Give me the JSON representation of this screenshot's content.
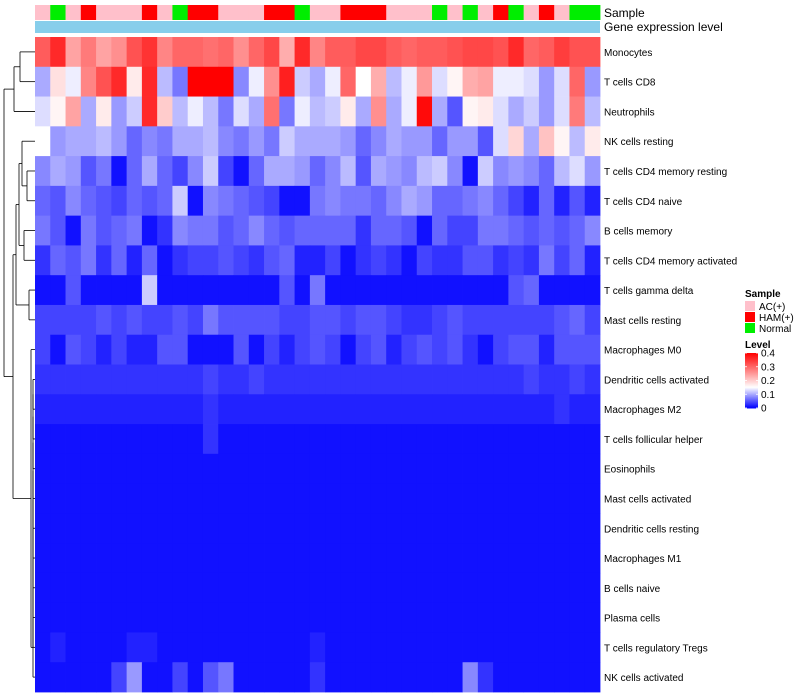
{
  "chart_data": {
    "type": "heatmap",
    "title": "",
    "annotation_tracks": {
      "sample": {
        "label": "Sample",
        "values": [
          "AC(+)",
          "Normal",
          "AC(+)",
          "HAM(+)",
          "AC(+)",
          "AC(+)",
          "AC(+)",
          "HAM(+)",
          "AC(+)",
          "Normal",
          "HAM(+)",
          "HAM(+)",
          "AC(+)",
          "AC(+)",
          "AC(+)",
          "HAM(+)",
          "HAM(+)",
          "Normal",
          "AC(+)",
          "AC(+)",
          "HAM(+)",
          "HAM(+)",
          "HAM(+)",
          "AC(+)",
          "AC(+)",
          "AC(+)",
          "Normal",
          "AC(+)",
          "Normal",
          "AC(+)",
          "HAM(+)",
          "Normal",
          "AC(+)",
          "HAM(+)",
          "AC(+)",
          "Normal",
          "Normal"
        ]
      },
      "gene_expression": {
        "label": "Gene expression level",
        "color": "#87ceeb"
      }
    },
    "legend": {
      "sample_title": "Sample",
      "sample_entries": [
        {
          "label": "AC(+)",
          "color": "#ffc0cb"
        },
        {
          "label": "HAM(+)",
          "color": "#ff0000"
        },
        {
          "label": "Normal",
          "color": "#00ee00"
        }
      ],
      "level_title": "Level",
      "level_ticks": [
        "0.4",
        "0.3",
        "0.2",
        "0.1",
        "0"
      ],
      "level_range": [
        0,
        0.4
      ],
      "low_color": "#0000ff",
      "mid_color": "#ffffff",
      "high_color": "#ff0000",
      "mid_value": 0.15
    },
    "rows": [
      "Monocytes",
      "T cells CD8",
      "Neutrophils",
      "NK cells resting",
      "T cells CD4 memory resting",
      "T cells CD4 naive",
      "B cells memory",
      "T cells CD4 memory activated",
      "T cells gamma delta",
      "Mast cells resting",
      "Macrophages M0",
      "Dendritic cells activated",
      "Macrophages M2",
      "T cells follicular helper",
      "Eosinophils",
      "Mast cells activated",
      "Dendritic cells resting",
      "Macrophages M1",
      "B cells naive",
      "Plasma cells",
      "T cells regulatory  Tregs",
      "NK cells activated"
    ],
    "values": [
      [
        0.31,
        0.36,
        0.24,
        0.28,
        0.24,
        0.26,
        0.32,
        0.35,
        0.27,
        0.3,
        0.3,
        0.29,
        0.3,
        0.26,
        0.3,
        0.33,
        0.23,
        0.36,
        0.27,
        0.31,
        0.31,
        0.33,
        0.33,
        0.31,
        0.3,
        0.31,
        0.31,
        0.32,
        0.33,
        0.33,
        0.32,
        0.36,
        0.3,
        0.31,
        0.34,
        0.32,
        0.32
      ],
      [
        0.1,
        0.18,
        0.14,
        0.27,
        0.32,
        0.36,
        0.17,
        0.36,
        0.11,
        0.07,
        0.4,
        0.4,
        0.4,
        0.08,
        0.14,
        0.26,
        0.37,
        0.12,
        0.1,
        0.14,
        0.3,
        0.15,
        0.23,
        0.11,
        0.14,
        0.25,
        0.13,
        0.16,
        0.23,
        0.24,
        0.14,
        0.14,
        0.13,
        0.09,
        0.13,
        0.3,
        0.09
      ],
      [
        0.13,
        0.16,
        0.24,
        0.1,
        0.17,
        0.09,
        0.12,
        0.36,
        0.2,
        0.11,
        0.14,
        0.11,
        0.07,
        0.13,
        0.1,
        0.29,
        0.07,
        0.14,
        0.11,
        0.12,
        0.17,
        0.1,
        0.26,
        0.1,
        0.14,
        0.39,
        0.1,
        0.05,
        0.16,
        0.17,
        0.13,
        0.1,
        0.12,
        0.09,
        0.13,
        0.28,
        0.11
      ],
      [
        0.15,
        0.09,
        0.1,
        0.1,
        0.11,
        0.09,
        0.06,
        0.08,
        0.07,
        0.1,
        0.1,
        0.11,
        0.08,
        0.07,
        0.09,
        0.07,
        0.12,
        0.1,
        0.1,
        0.1,
        0.09,
        0.06,
        0.08,
        0.1,
        0.09,
        0.09,
        0.06,
        0.09,
        0.09,
        0.05,
        0.13,
        0.19,
        0.1,
        0.21,
        0.16,
        0.11,
        0.17
      ],
      [
        0.08,
        0.1,
        0.09,
        0.05,
        0.07,
        0.01,
        0.06,
        0.1,
        0.06,
        0.04,
        0.08,
        0.12,
        0.04,
        0.01,
        0.06,
        0.1,
        0.1,
        0.09,
        0.06,
        0.08,
        0.11,
        0.05,
        0.1,
        0.09,
        0.08,
        0.11,
        0.12,
        0.08,
        0.01,
        0.12,
        0.08,
        0.09,
        0.08,
        0.06,
        0.11,
        0.13,
        0.09
      ],
      [
        0.06,
        0.05,
        0.08,
        0.06,
        0.05,
        0.04,
        0.06,
        0.05,
        0.06,
        0.12,
        0.01,
        0.08,
        0.07,
        0.06,
        0.05,
        0.04,
        0.01,
        0.01,
        0.07,
        0.08,
        0.07,
        0.07,
        0.06,
        0.08,
        0.1,
        0.09,
        0.06,
        0.06,
        0.07,
        0.08,
        0.06,
        0.04,
        0.02,
        0.06,
        0.02,
        0.05,
        0.02
      ],
      [
        0.07,
        0.05,
        0.01,
        0.07,
        0.05,
        0.06,
        0.07,
        0.01,
        0.03,
        0.08,
        0.07,
        0.07,
        0.05,
        0.06,
        0.08,
        0.06,
        0.05,
        0.06,
        0.06,
        0.06,
        0.06,
        0.03,
        0.06,
        0.06,
        0.05,
        0.01,
        0.06,
        0.04,
        0.04,
        0.07,
        0.07,
        0.06,
        0.05,
        0.06,
        0.05,
        0.06,
        0.08
      ],
      [
        0.03,
        0.06,
        0.05,
        0.07,
        0.03,
        0.06,
        0.02,
        0.06,
        0.01,
        0.03,
        0.04,
        0.04,
        0.05,
        0.04,
        0.03,
        0.05,
        0.06,
        0.02,
        0.02,
        0.04,
        0.01,
        0.03,
        0.04,
        0.03,
        0.01,
        0.04,
        0.03,
        0.03,
        0.05,
        0.05,
        0.03,
        0.04,
        0.03,
        0.07,
        0.04,
        0.06,
        0.02
      ],
      [
        0.01,
        0.01,
        0.05,
        0.01,
        0.01,
        0.01,
        0.01,
        0.12,
        0.01,
        0.01,
        0.01,
        0.01,
        0.01,
        0.01,
        0.01,
        0.01,
        0.05,
        0.01,
        0.07,
        0.01,
        0.01,
        0.01,
        0.01,
        0.01,
        0.01,
        0.01,
        0.01,
        0.01,
        0.01,
        0.01,
        0.01,
        0.05,
        0.06,
        0.01,
        0.01,
        0.01,
        0.01
      ],
      [
        0.04,
        0.04,
        0.04,
        0.04,
        0.05,
        0.04,
        0.05,
        0.04,
        0.04,
        0.05,
        0.04,
        0.07,
        0.05,
        0.05,
        0.05,
        0.05,
        0.04,
        0.04,
        0.05,
        0.05,
        0.04,
        0.05,
        0.05,
        0.04,
        0.03,
        0.03,
        0.04,
        0.05,
        0.04,
        0.04,
        0.04,
        0.04,
        0.04,
        0.04,
        0.05,
        0.06,
        0.04
      ],
      [
        0.04,
        0.01,
        0.05,
        0.04,
        0.02,
        0.04,
        0.02,
        0.02,
        0.05,
        0.05,
        0.01,
        0.01,
        0.01,
        0.05,
        0.01,
        0.04,
        0.02,
        0.04,
        0.05,
        0.04,
        0.01,
        0.04,
        0.05,
        0.02,
        0.04,
        0.05,
        0.04,
        0.05,
        0.03,
        0.01,
        0.04,
        0.05,
        0.05,
        0.02,
        0.05,
        0.05,
        0.05
      ],
      [
        0.03,
        0.03,
        0.03,
        0.03,
        0.03,
        0.03,
        0.03,
        0.03,
        0.03,
        0.03,
        0.03,
        0.04,
        0.03,
        0.03,
        0.04,
        0.03,
        0.03,
        0.03,
        0.03,
        0.03,
        0.03,
        0.03,
        0.03,
        0.03,
        0.03,
        0.03,
        0.03,
        0.03,
        0.03,
        0.03,
        0.03,
        0.03,
        0.04,
        0.03,
        0.03,
        0.04,
        0.03
      ],
      [
        0.02,
        0.02,
        0.02,
        0.02,
        0.02,
        0.02,
        0.02,
        0.02,
        0.02,
        0.02,
        0.02,
        0.03,
        0.02,
        0.02,
        0.02,
        0.02,
        0.02,
        0.02,
        0.02,
        0.02,
        0.02,
        0.02,
        0.02,
        0.02,
        0.02,
        0.02,
        0.02,
        0.02,
        0.02,
        0.02,
        0.02,
        0.02,
        0.02,
        0.02,
        0.03,
        0.02,
        0.02
      ],
      [
        0.01,
        0.01,
        0.01,
        0.01,
        0.01,
        0.01,
        0.01,
        0.01,
        0.01,
        0.01,
        0.01,
        0.03,
        0.01,
        0.01,
        0.01,
        0.01,
        0.01,
        0.01,
        0.01,
        0.01,
        0.01,
        0.01,
        0.01,
        0.01,
        0.01,
        0.01,
        0.01,
        0.01,
        0.01,
        0.01,
        0.01,
        0.01,
        0.01,
        0.01,
        0.01,
        0.01,
        0.01
      ],
      [
        0.01,
        0.01,
        0.01,
        0.01,
        0.01,
        0.01,
        0.01,
        0.01,
        0.01,
        0.01,
        0.01,
        0.01,
        0.01,
        0.01,
        0.01,
        0.01,
        0.01,
        0.01,
        0.01,
        0.01,
        0.01,
        0.01,
        0.01,
        0.01,
        0.01,
        0.01,
        0.01,
        0.01,
        0.01,
        0.01,
        0.01,
        0.01,
        0.01,
        0.01,
        0.01,
        0.01,
        0.01
      ],
      [
        0.01,
        0.01,
        0.01,
        0.01,
        0.01,
        0.01,
        0.01,
        0.01,
        0.01,
        0.01,
        0.01,
        0.01,
        0.01,
        0.01,
        0.01,
        0.01,
        0.01,
        0.01,
        0.01,
        0.01,
        0.01,
        0.01,
        0.01,
        0.01,
        0.01,
        0.01,
        0.01,
        0.01,
        0.01,
        0.01,
        0.01,
        0.01,
        0.01,
        0.01,
        0.01,
        0.01,
        0.01
      ],
      [
        0.01,
        0.01,
        0.01,
        0.01,
        0.01,
        0.01,
        0.01,
        0.01,
        0.01,
        0.01,
        0.01,
        0.01,
        0.01,
        0.01,
        0.01,
        0.01,
        0.01,
        0.01,
        0.01,
        0.01,
        0.01,
        0.01,
        0.01,
        0.01,
        0.01,
        0.01,
        0.01,
        0.01,
        0.01,
        0.01,
        0.01,
        0.01,
        0.01,
        0.01,
        0.01,
        0.01,
        0.01
      ],
      [
        0.01,
        0.01,
        0.01,
        0.01,
        0.01,
        0.01,
        0.01,
        0.01,
        0.01,
        0.01,
        0.01,
        0.01,
        0.01,
        0.01,
        0.01,
        0.01,
        0.01,
        0.01,
        0.01,
        0.01,
        0.01,
        0.01,
        0.01,
        0.01,
        0.01,
        0.01,
        0.01,
        0.01,
        0.01,
        0.01,
        0.01,
        0.01,
        0.01,
        0.01,
        0.01,
        0.01,
        0.01
      ],
      [
        0.01,
        0.01,
        0.01,
        0.01,
        0.01,
        0.01,
        0.01,
        0.01,
        0.01,
        0.01,
        0.01,
        0.01,
        0.01,
        0.01,
        0.01,
        0.01,
        0.01,
        0.01,
        0.01,
        0.01,
        0.01,
        0.01,
        0.01,
        0.01,
        0.01,
        0.01,
        0.01,
        0.01,
        0.01,
        0.01,
        0.01,
        0.01,
        0.01,
        0.01,
        0.01,
        0.01,
        0.01
      ],
      [
        0.01,
        0.01,
        0.01,
        0.01,
        0.01,
        0.01,
        0.01,
        0.01,
        0.01,
        0.01,
        0.01,
        0.01,
        0.01,
        0.01,
        0.01,
        0.01,
        0.01,
        0.01,
        0.01,
        0.01,
        0.01,
        0.01,
        0.01,
        0.01,
        0.01,
        0.01,
        0.01,
        0.01,
        0.01,
        0.01,
        0.01,
        0.01,
        0.01,
        0.01,
        0.01,
        0.01,
        0.01
      ],
      [
        0.01,
        0.02,
        0.01,
        0.01,
        0.01,
        0.01,
        0.02,
        0.02,
        0.01,
        0.01,
        0.01,
        0.01,
        0.01,
        0.01,
        0.01,
        0.01,
        0.01,
        0.01,
        0.02,
        0.01,
        0.01,
        0.01,
        0.01,
        0.01,
        0.01,
        0.01,
        0.01,
        0.01,
        0.01,
        0.01,
        0.01,
        0.01,
        0.01,
        0.01,
        0.01,
        0.01,
        0.01
      ],
      [
        0.01,
        0.01,
        0.01,
        0.01,
        0.01,
        0.04,
        0.09,
        0.01,
        0.01,
        0.04,
        0.01,
        0.05,
        0.07,
        0.01,
        0.01,
        0.01,
        0.01,
        0.01,
        0.03,
        0.01,
        0.01,
        0.01,
        0.01,
        0.01,
        0.01,
        0.01,
        0.01,
        0.01,
        0.08,
        0.03,
        0.01,
        0.01,
        0.01,
        0.01,
        0.01,
        0.01,
        0.01
      ]
    ]
  }
}
